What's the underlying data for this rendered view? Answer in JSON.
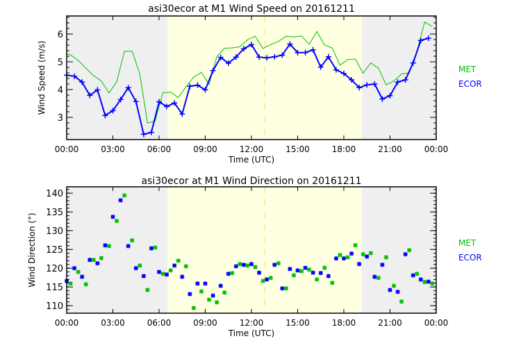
{
  "chart_data": [
    {
      "type": "line",
      "title": "asi30ecor at M1 Wind Speed on 20161211",
      "xlabel": "Time (UTC)",
      "ylabel": "Wind Speed (m/s)",
      "xlim": [
        0,
        24
      ],
      "ylim": [
        2.2,
        6.65
      ],
      "x_tick_labels": [
        "00:00",
        "03:00",
        "06:00",
        "09:00",
        "12:00",
        "15:00",
        "18:00",
        "21:00",
        "00:00"
      ],
      "y_ticks": [
        3,
        4,
        5,
        6
      ],
      "legend": [
        "MET",
        "ECOR"
      ],
      "legend_placement": "right",
      "shading": [
        {
          "from": 0,
          "to": 6.55,
          "color": "#efefef"
        },
        {
          "from": 6.55,
          "to": 19.17,
          "color": "#ffffe2"
        },
        {
          "from": 19.17,
          "to": 24,
          "color": "#efefef"
        }
      ],
      "marker_line_x": 12.87,
      "series": [
        {
          "name": "MET",
          "color": "#00c000",
          "marker": "none",
          "x": [
            0,
            0.25,
            0.75,
            1.25,
            1.75,
            2.25,
            2.75,
            3.25,
            3.75,
            4.25,
            4.75,
            5.25,
            5.75,
            6.25,
            6.75,
            7.25,
            7.75,
            8.25,
            8.75,
            9.25,
            9.75,
            10.25,
            10.75,
            11.25,
            11.75,
            12.25,
            12.75,
            13.25,
            13.75,
            14.25,
            14.75,
            15.25,
            15.75,
            16.25,
            16.75,
            17.25,
            17.75,
            18.25,
            18.75,
            19.25,
            19.75,
            20.25,
            20.75,
            21.25,
            21.75,
            22.25,
            22.75,
            23.25,
            23.75
          ],
          "y": [
            5.29,
            5.25,
            5.05,
            4.77,
            4.5,
            4.31,
            3.88,
            4.28,
            5.38,
            5.38,
            4.56,
            2.79,
            2.87,
            3.89,
            3.91,
            3.71,
            4.1,
            4.45,
            4.62,
            4.18,
            5.18,
            5.49,
            5.5,
            5.54,
            5.8,
            5.92,
            5.48,
            5.62,
            5.73,
            5.92,
            5.89,
            5.93,
            5.63,
            6.09,
            5.6,
            5.5,
            4.88,
            5.08,
            5.1,
            4.59,
            4.96,
            4.77,
            4.17,
            4.31,
            4.56,
            4.6,
            5.39,
            6.43,
            6.27
          ]
        },
        {
          "name": "ECOR",
          "color": "#0000ff",
          "marker": "plus",
          "x": [
            0,
            0.5,
            1,
            1.5,
            2,
            2.5,
            3,
            3.5,
            4,
            4.5,
            5,
            5.5,
            6,
            6.5,
            7,
            7.5,
            8,
            8.5,
            9,
            9.5,
            10,
            10.5,
            11,
            11.5,
            12,
            12.5,
            13,
            13.5,
            14,
            14.5,
            15,
            15.5,
            16,
            16.5,
            17,
            17.5,
            18,
            18.5,
            19,
            19.5,
            20,
            20.5,
            21,
            21.5,
            22,
            22.5,
            23,
            23.5
          ],
          "y": [
            4.52,
            4.48,
            4.27,
            3.79,
            3.99,
            3.07,
            3.24,
            3.64,
            4.07,
            3.57,
            2.39,
            2.46,
            3.56,
            3.39,
            3.52,
            3.12,
            4.12,
            4.16,
            3.99,
            4.68,
            5.16,
            4.95,
            5.17,
            5.47,
            5.62,
            5.17,
            5.14,
            5.18,
            5.24,
            5.64,
            5.33,
            5.33,
            5.43,
            4.81,
            5.18,
            4.71,
            4.58,
            4.35,
            4.07,
            4.17,
            4.2,
            3.66,
            3.78,
            4.27,
            4.35,
            4.96,
            5.77,
            5.85
          ]
        }
      ]
    },
    {
      "type": "scatter",
      "title": "asi30ecor at M1 Wind Direction on 20161211",
      "xlabel": "Time (UTC)",
      "ylabel": "Wind Direction (°)",
      "xlim": [
        0,
        24
      ],
      "ylim": [
        108,
        141.7
      ],
      "x_tick_labels": [
        "00:00",
        "03:00",
        "06:00",
        "09:00",
        "12:00",
        "15:00",
        "18:00",
        "21:00",
        "00:00"
      ],
      "y_ticks": [
        110,
        115,
        120,
        125,
        130,
        135,
        140
      ],
      "legend": [
        "MET",
        "ECOR"
      ],
      "legend_placement": "right",
      "shading": [
        {
          "from": 0,
          "to": 6.55,
          "color": "#efefef"
        },
        {
          "from": 6.55,
          "to": 19.17,
          "color": "#ffffe2"
        },
        {
          "from": 19.17,
          "to": 24,
          "color": "#efefef"
        }
      ],
      "marker_line_x": 12.87,
      "series": [
        {
          "name": "MET",
          "color": "#00c000",
          "marker": "asterisk",
          "x": [
            0.25,
            0.75,
            1.25,
            1.75,
            2.25,
            2.75,
            3.25,
            3.75,
            4.25,
            4.75,
            5.25,
            5.75,
            6.25,
            6.75,
            7.25,
            7.75,
            8.25,
            8.75,
            9.25,
            9.75,
            10.25,
            10.75,
            11.25,
            11.75,
            12.25,
            12.75,
            13.25,
            13.75,
            14.25,
            14.75,
            15.25,
            15.75,
            16.25,
            16.75,
            17.25,
            17.75,
            18.25,
            18.75,
            19.25,
            19.75,
            20.25,
            20.75,
            21.25,
            21.75,
            22.25,
            22.75,
            23.25,
            23.75
          ],
          "y": [
            115.9,
            119.0,
            115.7,
            122.2,
            122.7,
            125.9,
            132.6,
            139.4,
            127.4,
            120.7,
            114.2,
            125.5,
            118.5,
            119.4,
            122.0,
            120.5,
            109.4,
            113.8,
            111.6,
            110.9,
            113.5,
            118.7,
            121.1,
            120.7,
            120.3,
            116.6,
            117.4,
            121.3,
            114.6,
            118.1,
            119.2,
            119.6,
            117.0,
            120.1,
            116.1,
            123.5,
            122.9,
            126.1,
            123.7,
            124.0,
            117.4,
            122.9,
            115.3,
            111.1,
            124.8,
            118.5,
            116.3,
            115.9
          ]
        },
        {
          "name": "ECOR",
          "color": "#0000ff",
          "marker": "asterisk",
          "x": [
            0,
            0.5,
            1,
            1.5,
            2,
            2.5,
            3,
            3.5,
            4,
            4.5,
            5,
            5.5,
            6,
            6.5,
            7,
            7.5,
            8,
            8.5,
            9,
            9.5,
            10,
            10.5,
            11,
            11.5,
            12,
            12.5,
            13,
            13.5,
            14,
            14.5,
            15,
            15.5,
            16,
            16.5,
            17,
            17.5,
            18,
            18.5,
            19,
            19.5,
            20,
            20.5,
            21,
            21.5,
            22,
            22.5,
            23,
            23.5
          ],
          "y": [
            116.6,
            120.0,
            117.7,
            122.2,
            121.3,
            126.1,
            133.7,
            138.1,
            125.9,
            120.0,
            117.9,
            125.3,
            119.0,
            118.3,
            120.7,
            117.7,
            113.1,
            115.9,
            115.9,
            112.7,
            115.3,
            118.5,
            120.5,
            120.9,
            121.1,
            118.8,
            117.0,
            120.9,
            114.6,
            119.8,
            119.4,
            120.1,
            118.8,
            118.7,
            117.9,
            122.6,
            122.6,
            123.9,
            121.1,
            123.1,
            117.7,
            120.9,
            114.2,
            113.7,
            123.7,
            118.1,
            117.0,
            116.4
          ]
        }
      ]
    }
  ]
}
